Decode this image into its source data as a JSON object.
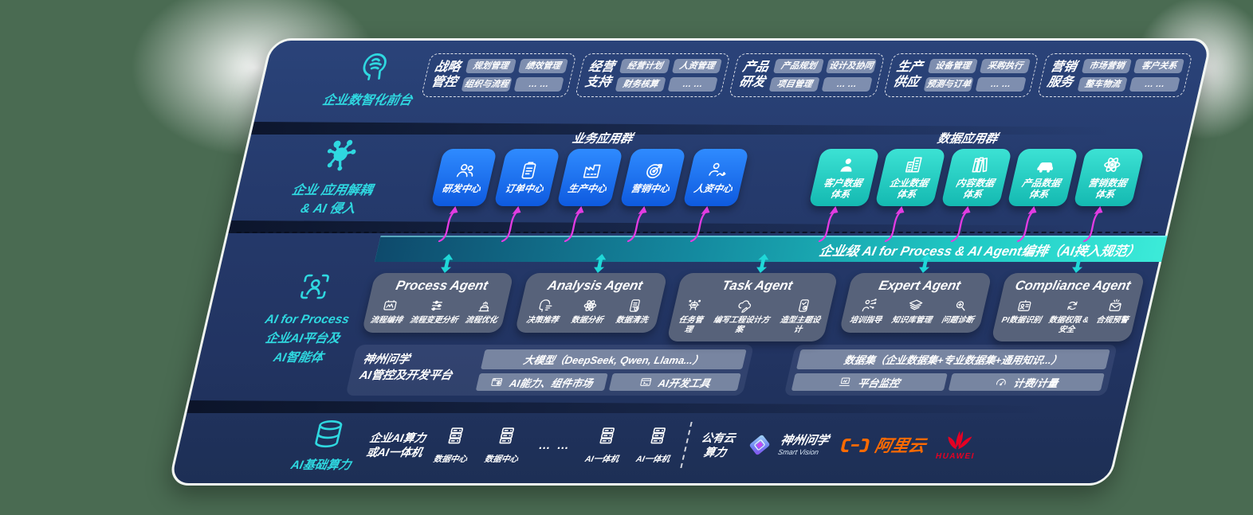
{
  "front_office": {
    "label": "企业数智化前台",
    "icon": "brain-circuit-icon",
    "groups": [
      {
        "title": "战略\n管控",
        "items": [
          "规划管理",
          "绩效管理",
          "组织与流程",
          "… …"
        ]
      },
      {
        "title": "经营\n支持",
        "items": [
          "经营计划",
          "人资管理",
          "财务核算",
          "… …"
        ]
      },
      {
        "title": "产品\n研发",
        "items": [
          "产品规划",
          "设计及协同",
          "项目管理",
          "… …"
        ]
      },
      {
        "title": "生产\n供应",
        "items": [
          "设备管理",
          "采购执行",
          "预测与订单",
          "… …"
        ]
      },
      {
        "title": "营销\n服务",
        "items": [
          "市场营销",
          "客户关系",
          "整车物流",
          "… …"
        ]
      }
    ]
  },
  "decouple": {
    "line1": "企业 应用解耦",
    "line2": "& AI 侵入",
    "icon": "molecule-icon"
  },
  "app_layer": {
    "business_header": "业务应用群",
    "data_header": "数据应用群",
    "business_boxes": [
      {
        "label": "研发中心",
        "icon": "team-icon"
      },
      {
        "label": "订单中心",
        "icon": "clipboard-icon"
      },
      {
        "label": "生产中心",
        "icon": "factory-icon"
      },
      {
        "label": "营销中心",
        "icon": "target-icon"
      },
      {
        "label": "人资中心",
        "icon": "person-flow-icon"
      }
    ],
    "data_boxes": [
      {
        "label": "客户数据\n体系",
        "icon": "person-icon"
      },
      {
        "label": "企业数据\n体系",
        "icon": "building-icon"
      },
      {
        "label": "内容数据\n体系",
        "icon": "books-icon"
      },
      {
        "label": "产品数据\n体系",
        "icon": "car-icon"
      },
      {
        "label": "营销数据\n体系",
        "icon": "atom-icon"
      }
    ]
  },
  "orchestration_bar": {
    "label": "企业级 AI for Process & AI Agent编排（AI接入规范）"
  },
  "ai_platform_side": {
    "line1": "AI for Process",
    "line2": "企业AI平台及",
    "line3": "AI智能体",
    "icon": "scan-person-icon"
  },
  "agents": [
    {
      "title": "Process Agent",
      "items": [
        {
          "label": "流程编排",
          "icon": "flow-icon"
        },
        {
          "label": "流程变更分析",
          "icon": "flow-change-icon"
        },
        {
          "label": "流程优化",
          "icon": "flow-opt-icon"
        }
      ]
    },
    {
      "title": "Analysis Agent",
      "items": [
        {
          "label": "决策推荐",
          "icon": "decision-icon"
        },
        {
          "label": "数据分析",
          "icon": "atom-icon"
        },
        {
          "label": "数据清洗",
          "icon": "data-clean-icon"
        }
      ]
    },
    {
      "title": "Task Agent",
      "items": [
        {
          "label": "任务管理",
          "icon": "task-manage-icon"
        },
        {
          "label": "编写工程设计方案",
          "icon": "write-design-icon"
        },
        {
          "label": "造型主题设计",
          "icon": "style-design-icon"
        }
      ]
    },
    {
      "title": "Expert Agent",
      "items": [
        {
          "label": "培训指导",
          "icon": "training-icon"
        },
        {
          "label": "知识库管理",
          "icon": "knowledge-icon"
        },
        {
          "label": "问题诊断",
          "icon": "diagnose-icon"
        }
      ]
    },
    {
      "title": "Compliance Agent",
      "items": [
        {
          "label": "PI数据识别",
          "icon": "pi-identify-icon"
        },
        {
          "label": "数据权限 &\n安全",
          "icon": "data-permission-icon"
        },
        {
          "label": "合规预警",
          "icon": "compliance-alert-icon"
        }
      ]
    }
  ],
  "platform": {
    "label_line1": "神州问学",
    "label_line2": "AI管控及开发平台",
    "model_bar": "大模型（DeepSeek, Qwen, Llama...）",
    "left_cells": [
      {
        "label": "AI能力、组件市场",
        "icon": "ai-market-icon"
      },
      {
        "label": "AI开发工具",
        "icon": "ai-tools-icon"
      }
    ],
    "dataset_bar": "数据集（企业数据集+专业数据集+通用知识...）",
    "right_cells": [
      {
        "label": "平台监控",
        "icon": "laptop-icon"
      },
      {
        "label": "计费/计量",
        "icon": "gauge-icon"
      }
    ]
  },
  "infra": {
    "label": "AI基础算力",
    "icon": "database-icon",
    "compute_line1": "企业AI算力",
    "compute_line2": "或AI一体机",
    "nodes": [
      {
        "label": "数据中心",
        "icon": "server-icon"
      },
      {
        "label": "数据中心",
        "icon": "server-icon"
      },
      {
        "label": "… …",
        "icon": "dots"
      },
      {
        "label": "AI一体机",
        "icon": "server-icon"
      },
      {
        "label": "AI一体机",
        "icon": "server-icon"
      }
    ],
    "public_cloud_line1": "公有云",
    "public_cloud_line2": "算力",
    "smartvision_name": "神州问学",
    "smartvision_sub": "Smart Vision",
    "alicloud_label": "阿里云",
    "huawei_label": "HUAWEI"
  },
  "colors": {
    "background": "#4a6b52",
    "navy": "#243a68",
    "accent_teal": "#2fd8e0",
    "blue_box": "#1b74f0",
    "teal_box": "#27d0c5",
    "magenta_arrow": "#e23ce2",
    "bar_gradient_end": "#3cebd9",
    "alicloud_orange": "#ff6a00",
    "huawei_red": "#e60023"
  }
}
